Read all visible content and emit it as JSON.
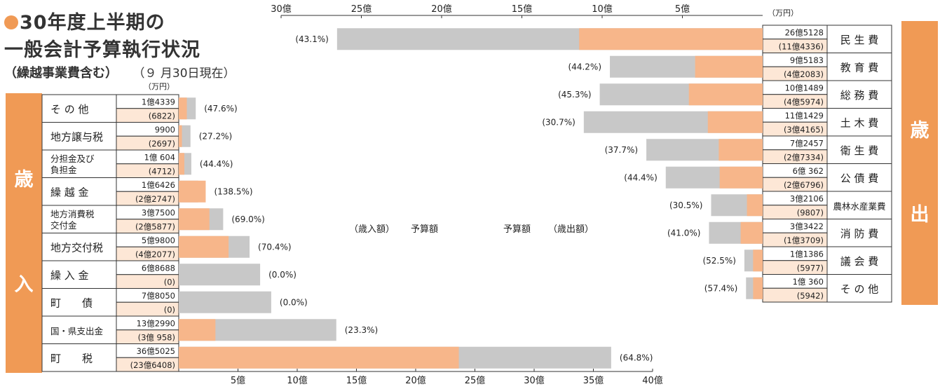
{
  "title": {
    "line1": "30年度上半期の",
    "line2": "一般会計予算執行状況",
    "line3": "（繰越事業費含む）",
    "date": "（９ 月30日現在）"
  },
  "colors": {
    "budget": "#c8c8c8",
    "executed": "#f7b68a",
    "accent": "#f09a55"
  },
  "chart_data": [
    {
      "type": "bar",
      "name": "歳入",
      "side_label_top": "歳",
      "side_label_bottom": "入",
      "unit_label": "（万円）",
      "xlim": [
        0,
        40
      ],
      "x_ticks": [
        "5億",
        "10億",
        "15億",
        "20億",
        "25億",
        "30億",
        "35億",
        "40億"
      ],
      "legend": {
        "executed": "（歳入額）",
        "budget": "予算額"
      },
      "rows": [
        {
          "label": [
            "そ の 他"
          ],
          "budget_text": "1億4339",
          "executed_text": "(6822)",
          "budget": 1.4339,
          "executed": 0.6822,
          "pct": "(47.6%)"
        },
        {
          "label": [
            "地方譲与税"
          ],
          "budget_text": "9900",
          "executed_text": "(2697)",
          "budget": 0.99,
          "executed": 0.2697,
          "pct": "(27.2%)"
        },
        {
          "label": [
            "分担金及び",
            "負担金"
          ],
          "budget_text": "1億 604",
          "executed_text": "(4712)",
          "budget": 1.0604,
          "executed": 0.4712,
          "pct": "(44.4%)"
        },
        {
          "label": [
            "繰 越 金"
          ],
          "budget_text": "1億6426",
          "executed_text": "(2億2747)",
          "budget": 1.6426,
          "executed": 2.2747,
          "pct": "(138.5%)"
        },
        {
          "label": [
            "地方消費税",
            "交付金"
          ],
          "budget_text": "3億7500",
          "executed_text": "(2億5877)",
          "budget": 3.75,
          "executed": 2.5877,
          "pct": "(69.0%)"
        },
        {
          "label": [
            "地方交付税"
          ],
          "budget_text": "5億9800",
          "executed_text": "(4億2077)",
          "budget": 5.98,
          "executed": 4.2077,
          "pct": "(70.4%)"
        },
        {
          "label": [
            "繰 入 金"
          ],
          "budget_text": "6億8688",
          "executed_text": "(0)",
          "budget": 6.8688,
          "executed": 0,
          "pct": "(0.0%)"
        },
        {
          "label": [
            "町　　債"
          ],
          "budget_text": "7億8050",
          "executed_text": "(0)",
          "budget": 7.805,
          "executed": 0,
          "pct": "(0.0%)"
        },
        {
          "label": [
            "国・県支出金"
          ],
          "budget_text": "13億2990",
          "executed_text": "(3億 958)",
          "budget": 13.299,
          "executed": 3.0958,
          "pct": "(23.3%)"
        },
        {
          "label": [
            "町　　税"
          ],
          "budget_text": "36億5025",
          "executed_text": "(23億6408)",
          "budget": 36.5025,
          "executed": 23.6408,
          "pct": "(64.8%)"
        }
      ]
    },
    {
      "type": "bar",
      "name": "歳出",
      "side_label_top": "歳",
      "side_label_bottom": "出",
      "unit_label": "（万円）",
      "xlim": [
        0,
        30
      ],
      "x_ticks": [
        "30億",
        "25億",
        "20億",
        "15億",
        "10億",
        "5億"
      ],
      "legend": {
        "budget": "予算額",
        "executed": "（歳出額）"
      },
      "rows": [
        {
          "label": [
            "民 生 費"
          ],
          "budget_text": "26億5128",
          "executed_text": "(11億4336)",
          "budget": 26.5128,
          "executed": 11.4336,
          "pct": "(43.1%)"
        },
        {
          "label": [
            "教 育 費"
          ],
          "budget_text": "9億5183",
          "executed_text": "(4億2083)",
          "budget": 9.5183,
          "executed": 4.2083,
          "pct": "(44.2%)"
        },
        {
          "label": [
            "総 務 費"
          ],
          "budget_text": "10億1489",
          "executed_text": "(4億5974)",
          "budget": 10.1489,
          "executed": 4.5974,
          "pct": "(45.3%)"
        },
        {
          "label": [
            "土 木 費"
          ],
          "budget_text": "11億1429",
          "executed_text": "(3億4165)",
          "budget": 11.1429,
          "executed": 3.4165,
          "pct": "(30.7%)"
        },
        {
          "label": [
            "衛 生 費"
          ],
          "budget_text": "7億2457",
          "executed_text": "(2億7334)",
          "budget": 7.2457,
          "executed": 2.7334,
          "pct": "(37.7%)"
        },
        {
          "label": [
            "公 債 費"
          ],
          "budget_text": "6億 362",
          "executed_text": "(2億6796)",
          "budget": 6.0362,
          "executed": 2.6796,
          "pct": "(44.4%)"
        },
        {
          "label": [
            "農林水産業費"
          ],
          "budget_text": "3億2106",
          "executed_text": "(9807)",
          "budget": 3.2106,
          "executed": 0.9807,
          "pct": "(30.5%)"
        },
        {
          "label": [
            "消 防 費"
          ],
          "budget_text": "3億3422",
          "executed_text": "(1億3709)",
          "budget": 3.3422,
          "executed": 1.3709,
          "pct": "(41.0%)"
        },
        {
          "label": [
            "議 会 費"
          ],
          "budget_text": "1億1386",
          "executed_text": "(5977)",
          "budget": 1.1386,
          "executed": 0.5977,
          "pct": "(52.5%)"
        },
        {
          "label": [
            "そ の 他"
          ],
          "budget_text": "1億 360",
          "executed_text": "(5942)",
          "budget": 1.036,
          "executed": 0.5942,
          "pct": "(57.4%)"
        }
      ]
    }
  ]
}
